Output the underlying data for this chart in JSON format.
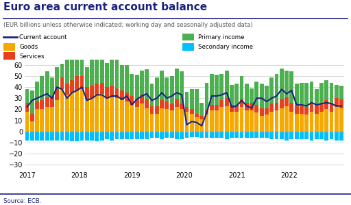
{
  "title": "Euro area current account balance",
  "subtitle": "(EUR billions unless otherwise indicated; working day and seasonally adjusted data)",
  "source": "Source: ECB.",
  "colors": {
    "goods": "#F5A800",
    "services": "#E8401C",
    "primary_income": "#4CAF50",
    "secondary_income": "#00BFFF",
    "current_account_line": "#1A237E"
  },
  "ylim": [
    -35,
    65
  ],
  "yticks": [
    -30,
    -20,
    -10,
    0,
    10,
    20,
    30,
    40,
    50,
    60
  ],
  "year_labels": [
    2017,
    2018,
    2019,
    2020,
    2021,
    2022
  ],
  "year_positions": [
    0,
    10.5,
    21,
    31.5,
    42,
    52.5
  ],
  "goods": [
    18,
    9,
    20,
    20,
    22,
    22,
    28,
    38,
    33,
    35,
    37,
    38,
    29,
    30,
    33,
    34,
    31,
    31,
    30,
    28,
    27,
    24,
    22,
    25,
    21,
    16,
    16,
    21,
    20,
    19,
    22,
    20,
    18,
    16,
    13,
    11,
    15,
    19,
    19,
    22,
    23,
    18,
    18,
    22,
    19,
    19,
    17,
    14,
    15,
    18,
    19,
    21,
    23,
    18,
    16,
    16,
    15,
    18,
    16,
    18,
    20,
    18,
    22,
    21
  ],
  "services": [
    8,
    7,
    7,
    8,
    9,
    9,
    10,
    11,
    10,
    11,
    13,
    12,
    11,
    11,
    10,
    10,
    9,
    10,
    9,
    9,
    8,
    8,
    7,
    8,
    8,
    7,
    7,
    7,
    7,
    6,
    7,
    5,
    4,
    4,
    3,
    3,
    4,
    5,
    5,
    6,
    7,
    6,
    6,
    7,
    7,
    7,
    7,
    7,
    6,
    7,
    7,
    8,
    8,
    8,
    7,
    7,
    7,
    8,
    8,
    8,
    8,
    8,
    8,
    8
  ],
  "primary_income": [
    12,
    21,
    18,
    22,
    23,
    18,
    20,
    12,
    26,
    22,
    17,
    28,
    18,
    27,
    30,
    23,
    22,
    28,
    28,
    23,
    25,
    20,
    22,
    22,
    27,
    20,
    26,
    27,
    22,
    25,
    28,
    29,
    14,
    18,
    22,
    12,
    25,
    28,
    27,
    24,
    25,
    18,
    19,
    21,
    17,
    13,
    21,
    22,
    20,
    24,
    26,
    28,
    24,
    28,
    20,
    21,
    22,
    19,
    14,
    18,
    18,
    18,
    12,
    12
  ],
  "secondary_income": [
    -8,
    -8,
    -8,
    -8,
    -8,
    -8,
    -8,
    -8,
    -8,
    -9,
    -9,
    -8,
    -8,
    -8,
    -9,
    -8,
    -7,
    -8,
    -7,
    -7,
    -7,
    -7,
    -7,
    -7,
    -7,
    -6,
    -6,
    -7,
    -6,
    -6,
    -7,
    -7,
    -6,
    -5,
    -5,
    -6,
    -6,
    -6,
    -6,
    -6,
    -7,
    -6,
    -6,
    -6,
    -6,
    -6,
    -6,
    -6,
    -6,
    -7,
    -7,
    -7,
    -8,
    -7,
    -7,
    -7,
    -7,
    -8,
    -7,
    -7,
    -8,
    -7,
    -8,
    -8
  ],
  "current_account": [
    22,
    28,
    30,
    32,
    34,
    30,
    40,
    38,
    30,
    35,
    37,
    40,
    28,
    30,
    33,
    33,
    30,
    32,
    32,
    29,
    32,
    24,
    29,
    32,
    34,
    28,
    30,
    35,
    30,
    32,
    35,
    33,
    6,
    9,
    8,
    5,
    17,
    32,
    32,
    33,
    35,
    22,
    23,
    28,
    23,
    21,
    30,
    30,
    27,
    30,
    32,
    38,
    34,
    37,
    24,
    24,
    23,
    26,
    24,
    25,
    26,
    25,
    23,
    23
  ]
}
